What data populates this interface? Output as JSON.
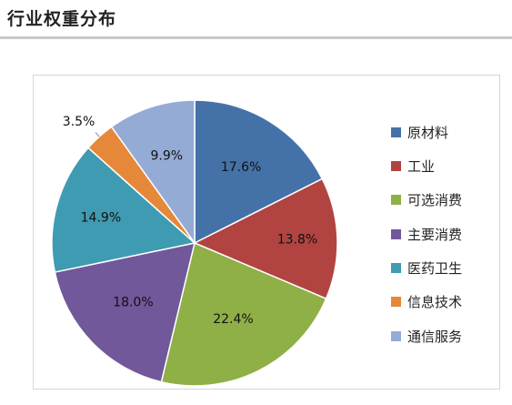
{
  "page_title": "行业权重分布",
  "chart_data": {
    "type": "pie",
    "title": "",
    "categories": [
      "原材料",
      "工业",
      "可选消费",
      "主要消费",
      "医药卫生",
      "信息技术",
      "通信服务"
    ],
    "values": [
      17.6,
      13.8,
      22.4,
      18.0,
      14.9,
      3.5,
      9.9
    ],
    "value_labels": [
      "17.6%",
      "13.8%",
      "22.4%",
      "18.0%",
      "14.9%",
      "3.5%",
      "9.9%"
    ],
    "colors": [
      "#4472A8",
      "#B14441",
      "#8FAF47",
      "#71589A",
      "#3F9BB1",
      "#E5883A",
      "#94ABD6"
    ],
    "legend_position": "right",
    "start_angle": "12 o'clock",
    "direction": "clockwise"
  }
}
